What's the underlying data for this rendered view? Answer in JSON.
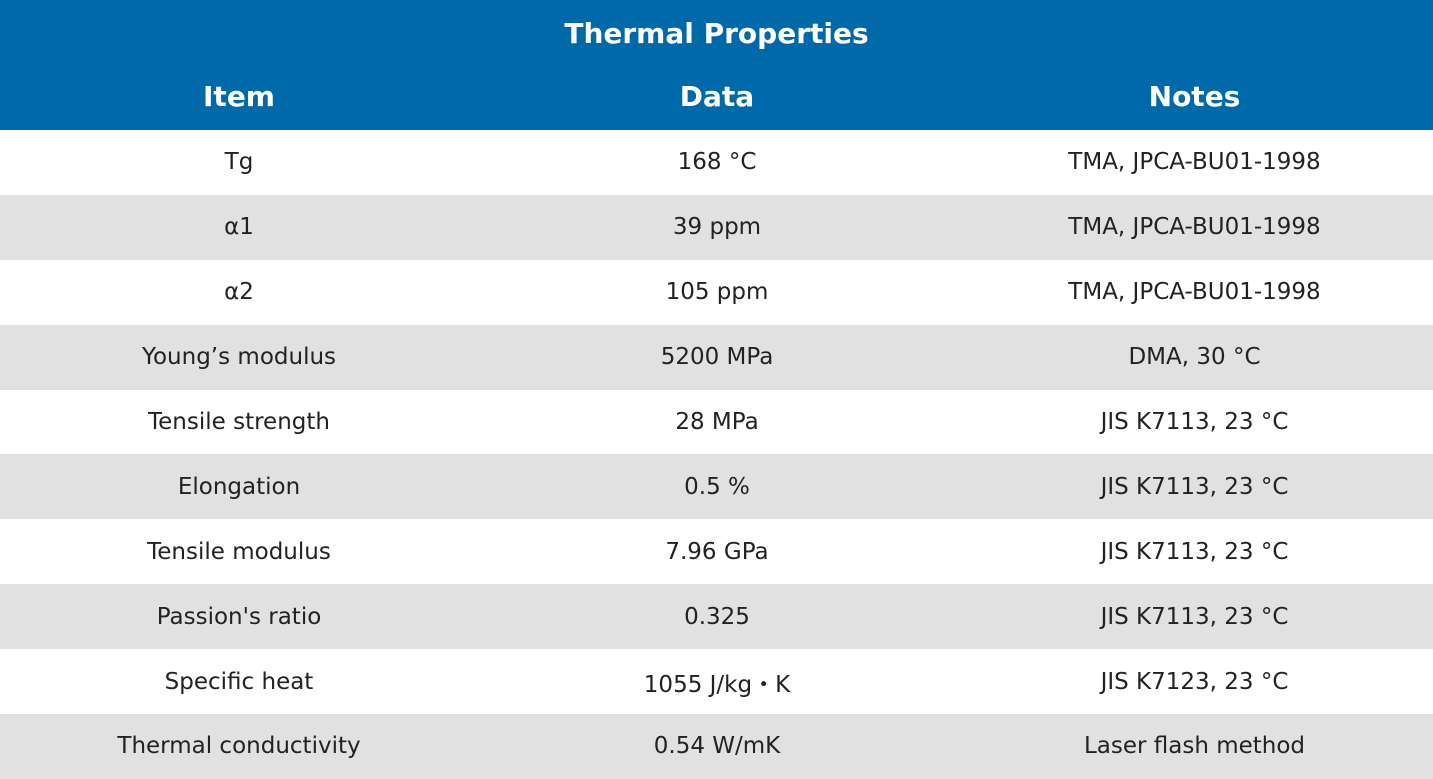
{
  "table": {
    "title": "Thermal Properties",
    "headers": [
      "Item",
      "Data",
      "Notes"
    ],
    "rows": [
      [
        "Tg",
        "168 °C",
        "TMA, JPCA-BU01-1998"
      ],
      [
        "α1",
        "39 ppm",
        "TMA, JPCA-BU01-1998"
      ],
      [
        "α2",
        "105 ppm",
        "TMA, JPCA-BU01-1998"
      ],
      [
        "Young’s modulus",
        "5200 MPa",
        "DMA, 30 °C"
      ],
      [
        "Tensile strength",
        "28 MPa",
        "JIS K7113, 23 °C"
      ],
      [
        "Elongation",
        "0.5 %",
        "JIS K7113, 23 °C"
      ],
      [
        "Tensile modulus",
        "7.96 GPa",
        "JIS K7113, 23 °C"
      ],
      [
        "Passion's ratio",
        "0.325",
        "JIS K7113, 23 °C"
      ],
      [
        "Specific heat",
        "1055 J/kg・K",
        "JIS K7123, 23 °C"
      ],
      [
        "Thermal conductivity",
        "0.54 W/mK",
        "Laser flash method"
      ]
    ]
  },
  "colors": {
    "header_bg": "#0069aa",
    "header_text": "#ffffff",
    "row_odd": "#ffffff",
    "row_even": "#e1e1e1",
    "body_text": "#222222"
  }
}
